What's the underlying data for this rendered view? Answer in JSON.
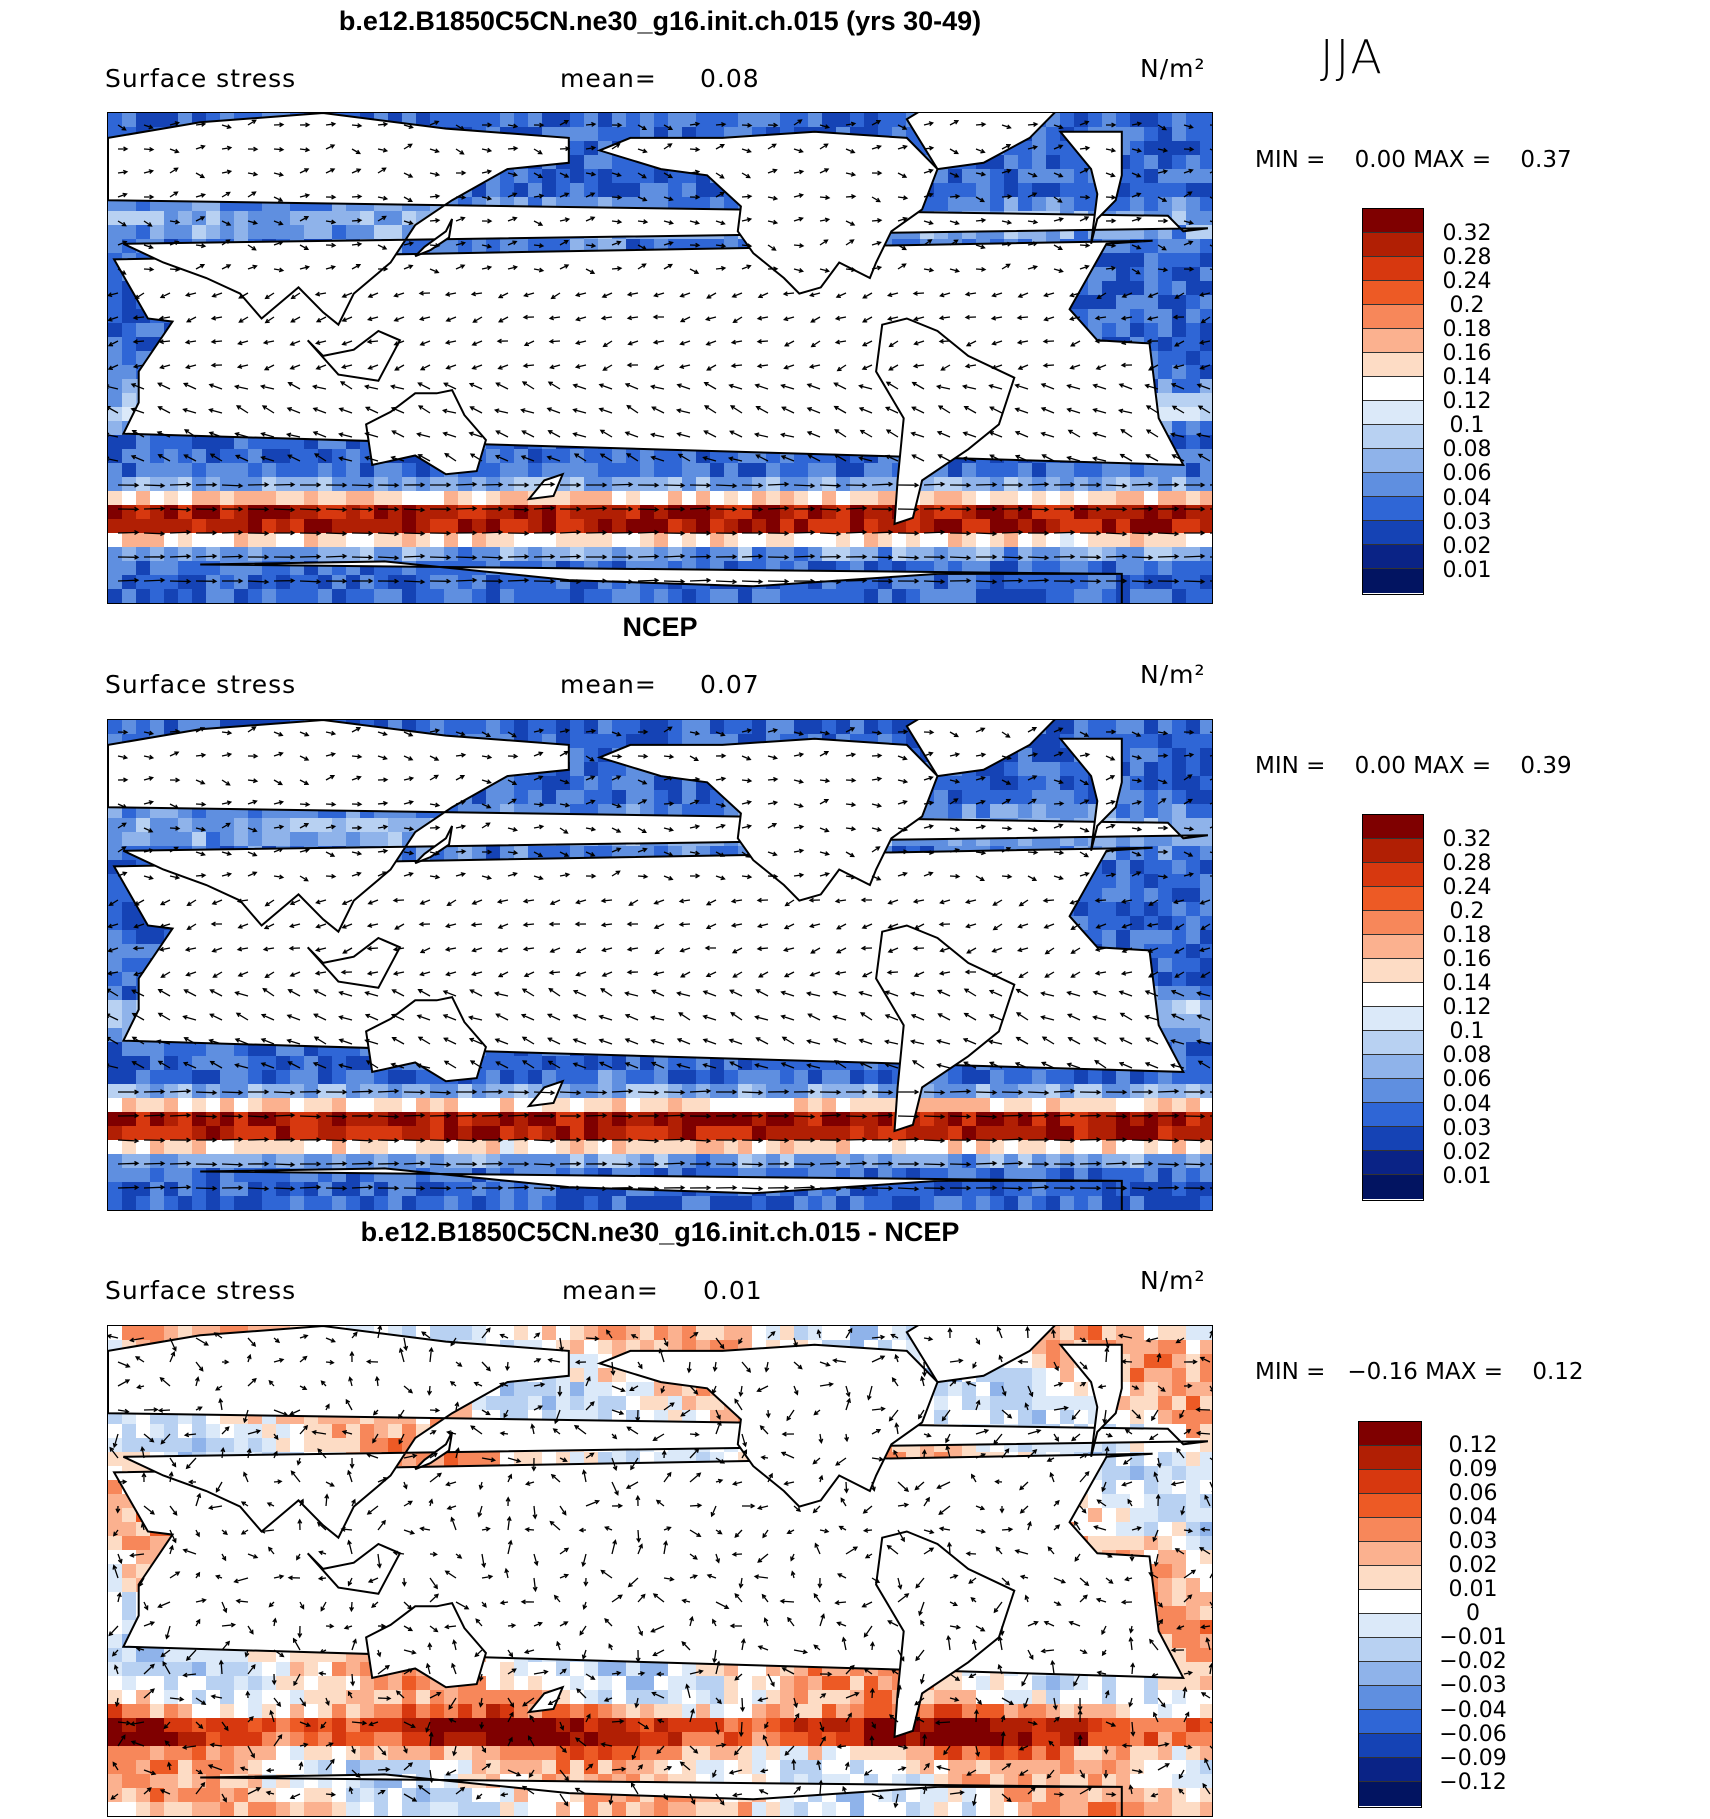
{
  "season": "JJA",
  "panels": [
    {
      "title": "b.e12.B1850C5CN.ne30_g16.init.ch.015 (yrs 30-49)",
      "variable": "Surface stress",
      "mean_label": "mean=",
      "mean_value": "0.08",
      "units": "N/m²",
      "min_label": "MIN =",
      "min_value": "0.00",
      "max_label": "MAX =",
      "max_value": "0.37",
      "colorbar_labels": [
        "0.32",
        "0.28",
        "0.24",
        "0.2",
        "0.18",
        "0.16",
        "0.14",
        "0.12",
        "0.1",
        "0.08",
        "0.06",
        "0.04",
        "0.03",
        "0.02",
        "0.01"
      ]
    },
    {
      "title": "NCEP",
      "variable": "Surface stress",
      "mean_label": "mean=",
      "mean_value": "0.07",
      "units": "N/m²",
      "min_label": "MIN =",
      "min_value": "0.00",
      "max_label": "MAX =",
      "max_value": "0.39",
      "colorbar_labels": [
        "0.32",
        "0.28",
        "0.24",
        "0.2",
        "0.18",
        "0.16",
        "0.14",
        "0.12",
        "0.1",
        "0.08",
        "0.06",
        "0.04",
        "0.03",
        "0.02",
        "0.01"
      ]
    },
    {
      "title": "b.e12.B1850C5CN.ne30_g16.init.ch.015 - NCEP",
      "variable": "Surface stress",
      "mean_label": "mean=",
      "mean_value": "0.01",
      "units": "N/m²",
      "min_label": "MIN =",
      "min_value": "−0.16",
      "max_label": "MAX =",
      "max_value": "0.12",
      "colorbar_labels": [
        "0.12",
        "0.09",
        "0.06",
        "0.04",
        "0.03",
        "0.02",
        "0.01",
        "0",
        "−0.01",
        "−0.02",
        "−0.03",
        "−0.04",
        "−0.06",
        "−0.09",
        "−0.12"
      ]
    }
  ],
  "colorbar_colors": [
    "#7f0000",
    "#b11f04",
    "#d7380f",
    "#ed5a25",
    "#f7875a",
    "#fbb18f",
    "#fddcc5",
    "#ffffff",
    "#dbe9f9",
    "#b8d1f2",
    "#8fb3ea",
    "#5f8fe0",
    "#2f66d6",
    "#1543b5",
    "#0a2386",
    "#021461"
  ]
}
